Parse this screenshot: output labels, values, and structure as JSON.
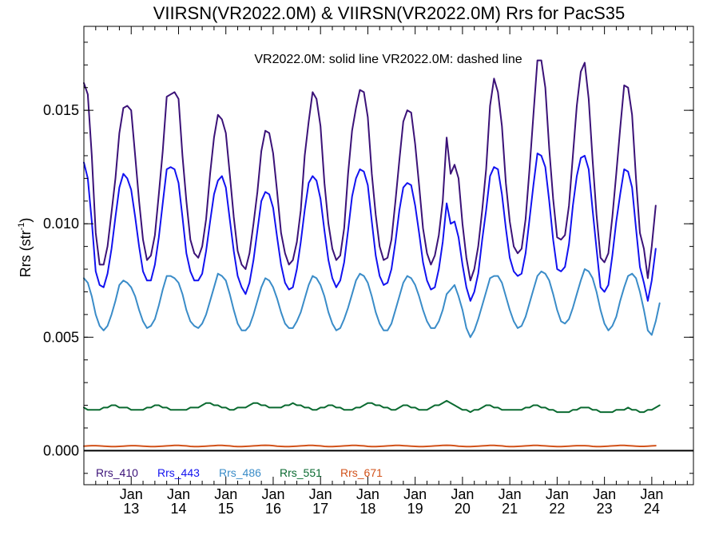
{
  "chart_data": {
    "type": "line",
    "title": "VIIRSN(VR2022.0M) & VIIRSN(VR2022.0M)  Rrs for PacS35",
    "annotation": "VR2022.0M: solid line   VR2022.0M: dashed line",
    "ylabel_main": "Rrs (str",
    "ylabel_sup": "-1",
    "ylabel_end": ")",
    "xlabel": "",
    "ylim": [
      -0.0015,
      0.0187
    ],
    "xlim": [
      2012.0,
      2024.88
    ],
    "yticks": [
      {
        "value": 0.0,
        "label": "0.000"
      },
      {
        "value": 0.005,
        "label": "0.005"
      },
      {
        "value": 0.01,
        "label": "0.010"
      },
      {
        "value": 0.015,
        "label": "0.015"
      }
    ],
    "xticks": [
      {
        "value": 2013.0,
        "month": "Jan",
        "year": "13"
      },
      {
        "value": 2014.0,
        "month": "Jan",
        "year": "14"
      },
      {
        "value": 2015.0,
        "month": "Jan",
        "year": "15"
      },
      {
        "value": 2016.0,
        "month": "Jan",
        "year": "16"
      },
      {
        "value": 2017.0,
        "month": "Jan",
        "year": "17"
      },
      {
        "value": 2018.0,
        "month": "Jan",
        "year": "18"
      },
      {
        "value": 2019.0,
        "month": "Jan",
        "year": "19"
      },
      {
        "value": 2020.0,
        "month": "Jan",
        "year": "20"
      },
      {
        "value": 2021.0,
        "month": "Jan",
        "year": "21"
      },
      {
        "value": 2022.0,
        "month": "Jan",
        "year": "22"
      },
      {
        "value": 2023.0,
        "month": "Jan",
        "year": "23"
      },
      {
        "value": 2024.0,
        "month": "Jan",
        "year": "24"
      }
    ],
    "x_start": 2012.0,
    "x_step": 0.08333,
    "zero_line": 0.0,
    "legend_placement": "bottom-left",
    "grid": false,
    "series": [
      {
        "name": "Rrs_410",
        "color": "#3b1278",
        "values": [
          0.0162,
          0.0157,
          0.013,
          0.0096,
          0.0082,
          0.0082,
          0.009,
          0.0105,
          0.012,
          0.014,
          0.0151,
          0.0152,
          0.015,
          0.013,
          0.011,
          0.0093,
          0.0084,
          0.0086,
          0.0095,
          0.0113,
          0.0132,
          0.0156,
          0.0157,
          0.0158,
          0.0155,
          0.013,
          0.011,
          0.0093,
          0.0087,
          0.0085,
          0.009,
          0.0102,
          0.0122,
          0.0138,
          0.0148,
          0.0146,
          0.014,
          0.0122,
          0.0103,
          0.0088,
          0.0082,
          0.008,
          0.0087,
          0.01,
          0.0114,
          0.0132,
          0.0141,
          0.014,
          0.0131,
          0.0114,
          0.0096,
          0.0087,
          0.0082,
          0.0084,
          0.0092,
          0.0106,
          0.013,
          0.0145,
          0.0158,
          0.0155,
          0.0143,
          0.0118,
          0.01,
          0.0089,
          0.0084,
          0.0086,
          0.0098,
          0.0122,
          0.0141,
          0.0151,
          0.0159,
          0.0158,
          0.0147,
          0.0122,
          0.0104,
          0.009,
          0.0084,
          0.0085,
          0.0093,
          0.011,
          0.0128,
          0.0145,
          0.015,
          0.0149,
          0.0135,
          0.0117,
          0.0098,
          0.0087,
          0.0082,
          0.0086,
          0.0095,
          0.011,
          0.0138,
          0.0122,
          0.0126,
          0.012,
          0.01,
          0.0085,
          0.0075,
          0.008,
          0.009,
          0.0106,
          0.0124,
          0.0152,
          0.0164,
          0.0158,
          0.0143,
          0.0118,
          0.0101,
          0.009,
          0.0087,
          0.0089,
          0.0102,
          0.0124,
          0.0148,
          0.0172,
          0.0172,
          0.016,
          0.0133,
          0.0111,
          0.0094,
          0.0093,
          0.0095,
          0.0108,
          0.013,
          0.0152,
          0.0167,
          0.0171,
          0.0155,
          0.0128,
          0.0104,
          0.0085,
          0.0083,
          0.0087,
          0.0103,
          0.0122,
          0.0142,
          0.0161,
          0.016,
          0.0148,
          0.012,
          0.0096,
          0.0089,
          0.0076,
          0.009,
          0.0108
        ]
      },
      {
        "name": "Rrs_443",
        "color": "#1212f0",
        "values": [
          0.0127,
          0.012,
          0.0101,
          0.0079,
          0.0073,
          0.0072,
          0.0078,
          0.0089,
          0.0103,
          0.0116,
          0.0122,
          0.012,
          0.0115,
          0.0103,
          0.009,
          0.0079,
          0.0075,
          0.0075,
          0.0082,
          0.0094,
          0.0109,
          0.0124,
          0.0125,
          0.0124,
          0.0118,
          0.0103,
          0.0087,
          0.0079,
          0.0075,
          0.0075,
          0.0078,
          0.0088,
          0.0101,
          0.0113,
          0.0119,
          0.0121,
          0.0116,
          0.0102,
          0.0088,
          0.0077,
          0.0072,
          0.0069,
          0.0074,
          0.0084,
          0.0097,
          0.011,
          0.0114,
          0.0113,
          0.0107,
          0.0094,
          0.0082,
          0.0074,
          0.0071,
          0.0072,
          0.008,
          0.0092,
          0.0106,
          0.0118,
          0.0121,
          0.0119,
          0.0111,
          0.0097,
          0.0084,
          0.0076,
          0.0072,
          0.0075,
          0.0083,
          0.0097,
          0.0112,
          0.012,
          0.0124,
          0.0123,
          0.0117,
          0.0101,
          0.0086,
          0.0077,
          0.0073,
          0.0074,
          0.008,
          0.0092,
          0.0106,
          0.0116,
          0.0118,
          0.0117,
          0.0108,
          0.0096,
          0.0083,
          0.0075,
          0.0071,
          0.0072,
          0.008,
          0.0092,
          0.0109,
          0.01,
          0.0101,
          0.0094,
          0.0082,
          0.0072,
          0.0066,
          0.007,
          0.0078,
          0.0093,
          0.0106,
          0.0121,
          0.0125,
          0.0124,
          0.0113,
          0.0098,
          0.0085,
          0.0079,
          0.0077,
          0.0078,
          0.0087,
          0.0102,
          0.0117,
          0.0131,
          0.013,
          0.0125,
          0.011,
          0.0093,
          0.008,
          0.0079,
          0.0081,
          0.0091,
          0.0108,
          0.0121,
          0.0129,
          0.013,
          0.0124,
          0.0106,
          0.0089,
          0.0072,
          0.007,
          0.0073,
          0.0086,
          0.0101,
          0.0113,
          0.0124,
          0.0123,
          0.0116,
          0.0098,
          0.0081,
          0.0074,
          0.0066,
          0.0075,
          0.0089
        ]
      },
      {
        "name": "Rrs_486",
        "color": "#3a8cc8",
        "values": [
          0.0076,
          0.0074,
          0.0068,
          0.006,
          0.0055,
          0.0053,
          0.0055,
          0.006,
          0.0066,
          0.0073,
          0.0075,
          0.0074,
          0.0072,
          0.0068,
          0.0062,
          0.0057,
          0.0054,
          0.0055,
          0.0058,
          0.0064,
          0.0071,
          0.0077,
          0.0077,
          0.0076,
          0.0074,
          0.0069,
          0.0062,
          0.0057,
          0.0055,
          0.0054,
          0.0056,
          0.006,
          0.0066,
          0.0072,
          0.0078,
          0.0077,
          0.0075,
          0.0069,
          0.0062,
          0.0056,
          0.0053,
          0.0053,
          0.0055,
          0.006,
          0.0066,
          0.0072,
          0.0076,
          0.0075,
          0.0072,
          0.0067,
          0.0061,
          0.0056,
          0.0054,
          0.0054,
          0.0057,
          0.0061,
          0.0067,
          0.0073,
          0.0077,
          0.0076,
          0.0073,
          0.0068,
          0.0061,
          0.0056,
          0.0053,
          0.0054,
          0.0058,
          0.0063,
          0.0069,
          0.0075,
          0.0078,
          0.0077,
          0.0074,
          0.0068,
          0.0061,
          0.0056,
          0.0053,
          0.0053,
          0.0056,
          0.0062,
          0.0068,
          0.0074,
          0.0077,
          0.0076,
          0.0073,
          0.0068,
          0.0062,
          0.0057,
          0.0054,
          0.0054,
          0.0057,
          0.0062,
          0.0069,
          0.0071,
          0.0073,
          0.0068,
          0.0062,
          0.0054,
          0.005,
          0.0053,
          0.0058,
          0.0064,
          0.007,
          0.0076,
          0.0077,
          0.0077,
          0.0074,
          0.0068,
          0.0062,
          0.0057,
          0.0054,
          0.0055,
          0.0059,
          0.0065,
          0.0071,
          0.0077,
          0.0079,
          0.0078,
          0.0075,
          0.0069,
          0.0062,
          0.0057,
          0.0056,
          0.0058,
          0.0063,
          0.0069,
          0.0075,
          0.008,
          0.0079,
          0.0076,
          0.007,
          0.0062,
          0.0056,
          0.0053,
          0.0055,
          0.0059,
          0.0066,
          0.0072,
          0.0077,
          0.0078,
          0.0076,
          0.007,
          0.0062,
          0.0053,
          0.0051,
          0.0057,
          0.0065
        ]
      },
      {
        "name": "Rrs_551",
        "color": "#0a6a30",
        "values": [
          0.0019,
          0.0018,
          0.0018,
          0.0018,
          0.0018,
          0.0019,
          0.0019,
          0.002,
          0.002,
          0.0019,
          0.0019,
          0.0019,
          0.0018,
          0.0018,
          0.0018,
          0.0018,
          0.0019,
          0.0019,
          0.002,
          0.002,
          0.0019,
          0.0019,
          0.0018,
          0.0018,
          0.0018,
          0.0018,
          0.0018,
          0.0019,
          0.0019,
          0.0019,
          0.002,
          0.0021,
          0.0021,
          0.002,
          0.002,
          0.0019,
          0.0019,
          0.0018,
          0.0018,
          0.0019,
          0.0019,
          0.0019,
          0.002,
          0.0021,
          0.0021,
          0.002,
          0.002,
          0.0019,
          0.0019,
          0.0019,
          0.0019,
          0.002,
          0.002,
          0.0021,
          0.002,
          0.002,
          0.0019,
          0.0019,
          0.0018,
          0.0018,
          0.0019,
          0.0019,
          0.002,
          0.002,
          0.0019,
          0.0019,
          0.0018,
          0.0018,
          0.0018,
          0.0019,
          0.0019,
          0.002,
          0.0021,
          0.0021,
          0.002,
          0.002,
          0.0019,
          0.0019,
          0.0018,
          0.0018,
          0.0019,
          0.002,
          0.002,
          0.0019,
          0.0019,
          0.0018,
          0.0018,
          0.0018,
          0.0019,
          0.002,
          0.002,
          0.0021,
          0.0022,
          0.0021,
          0.002,
          0.0019,
          0.0018,
          0.0018,
          0.0017,
          0.0018,
          0.0018,
          0.0019,
          0.002,
          0.002,
          0.0019,
          0.0019,
          0.0018,
          0.0018,
          0.0018,
          0.0018,
          0.0018,
          0.0018,
          0.0019,
          0.0019,
          0.002,
          0.002,
          0.0019,
          0.0019,
          0.0018,
          0.0018,
          0.0017,
          0.0017,
          0.0017,
          0.0017,
          0.0018,
          0.0018,
          0.0019,
          0.0019,
          0.0019,
          0.0018,
          0.0018,
          0.0017,
          0.0017,
          0.0017,
          0.0017,
          0.0018,
          0.0018,
          0.0018,
          0.0019,
          0.0018,
          0.0018,
          0.0017,
          0.0017,
          0.0018,
          0.0018,
          0.0019,
          0.002
        ]
      },
      {
        "name": "Rrs_671",
        "color": "#d2521a",
        "values": [
          0.0002,
          0.00021,
          0.00022,
          0.00022,
          0.00021,
          0.0002,
          0.00019,
          0.00018,
          0.00018,
          0.00019,
          0.0002,
          0.00021,
          0.00022,
          0.00022,
          0.00021,
          0.0002,
          0.00019,
          0.00018,
          0.00018,
          0.00019,
          0.0002,
          0.00021,
          0.00022,
          0.00023,
          0.00023,
          0.00022,
          0.00021,
          0.00019,
          0.00018,
          0.00018,
          0.00019,
          0.0002,
          0.00021,
          0.00022,
          0.00023,
          0.00023,
          0.00022,
          0.00021,
          0.00019,
          0.00018,
          0.00018,
          0.00019,
          0.0002,
          0.00021,
          0.00022,
          0.00023,
          0.00024,
          0.00023,
          0.00022,
          0.0002,
          0.00019,
          0.00018,
          0.00018,
          0.00019,
          0.0002,
          0.00021,
          0.00022,
          0.00023,
          0.00023,
          0.00022,
          0.00021,
          0.00019,
          0.00018,
          0.00018,
          0.00019,
          0.0002,
          0.00021,
          0.00022,
          0.00023,
          0.00023,
          0.00022,
          0.00021,
          0.00019,
          0.00018,
          0.00018,
          0.00019,
          0.0002,
          0.00021,
          0.00022,
          0.00023,
          0.00023,
          0.00022,
          0.00021,
          0.0002,
          0.00019,
          0.00018,
          0.00018,
          0.00019,
          0.0002,
          0.00021,
          0.00022,
          0.00023,
          0.00024,
          0.00023,
          0.00022,
          0.0002,
          0.00019,
          0.00018,
          0.00018,
          0.00019,
          0.0002,
          0.00021,
          0.00022,
          0.00023,
          0.00023,
          0.00022,
          0.00021,
          0.00019,
          0.00018,
          0.00018,
          0.00019,
          0.0002,
          0.00021,
          0.00022,
          0.00023,
          0.00023,
          0.00022,
          0.00021,
          0.0002,
          0.00019,
          0.00018,
          0.00018,
          0.00019,
          0.0002,
          0.00021,
          0.00022,
          0.00022,
          0.00022,
          0.00021,
          0.00019,
          0.00018,
          0.00018,
          0.00019,
          0.0002,
          0.00021,
          0.00022,
          0.00023,
          0.00023,
          0.00022,
          0.00021,
          0.0002,
          0.00019,
          0.00019,
          0.0002,
          0.00021,
          0.00022
        ]
      }
    ]
  }
}
